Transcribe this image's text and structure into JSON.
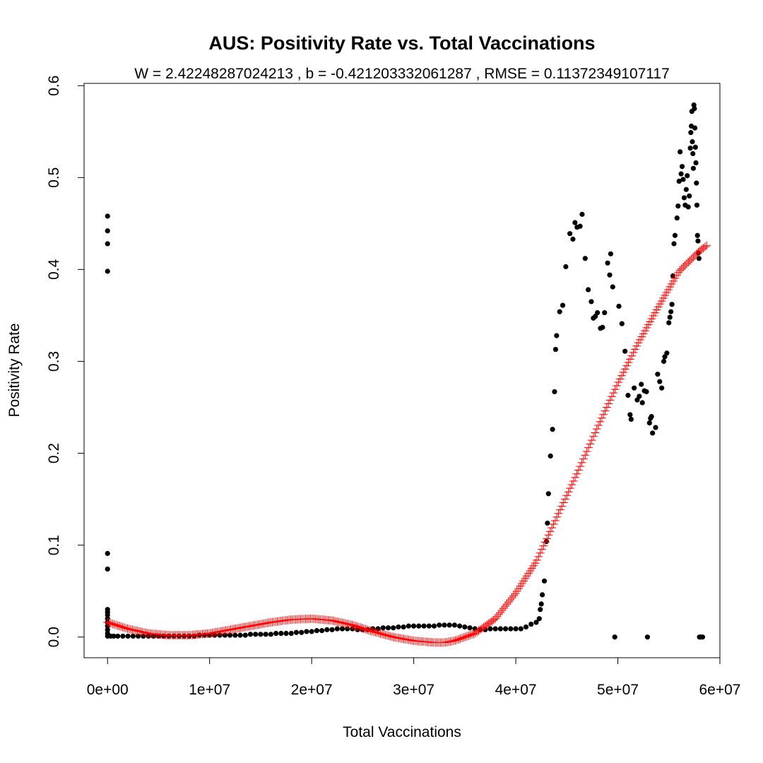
{
  "chart_data": {
    "type": "scatter",
    "title": "AUS: Positivity Rate vs. Total Vaccinations",
    "subtitle": "W = 2.42248287024213 , b = -0.421203332061287 , RMSE = 0.11372349107117",
    "xlabel": "Total Vaccinations",
    "ylabel": "Positivity Rate",
    "xlim": [
      -2300000,
      60000000
    ],
    "ylim": [
      -0.0225,
      0.6025
    ],
    "x_ticks": [
      0,
      10000000,
      20000000,
      30000000,
      40000000,
      50000000,
      60000000
    ],
    "x_tick_labels": [
      "0e+00",
      "1e+07",
      "2e+07",
      "3e+07",
      "4e+07",
      "5e+07",
      "6e+07"
    ],
    "y_ticks": [
      0,
      0.1,
      0.2,
      0.3,
      0.4,
      0.5,
      0.6
    ],
    "y_tick_labels": [
      "0.0",
      "0.1",
      "0.2",
      "0.3",
      "0.4",
      "0.5",
      "0.6"
    ],
    "grid": false,
    "series": [
      {
        "marker": "filled-circle",
        "color": "#000000",
        "points": [
          [
            0,
            0.458
          ],
          [
            0,
            0.442
          ],
          [
            0,
            0.428
          ],
          [
            0,
            0.398
          ],
          [
            0,
            0.091
          ],
          [
            0,
            0.074
          ],
          [
            0,
            0.03
          ],
          [
            0,
            0.027
          ],
          [
            0,
            0.024
          ],
          [
            0,
            0.02
          ],
          [
            0,
            0.016
          ],
          [
            0,
            0.012
          ],
          [
            0,
            0.008
          ],
          [
            0,
            0.004
          ],
          [
            0,
            0.001
          ],
          [
            300000,
            0.001
          ],
          [
            600000,
            0.001
          ],
          [
            1000000,
            0.001
          ],
          [
            1500000,
            0.001
          ],
          [
            2000000,
            0.001
          ],
          [
            2500000,
            0.001
          ],
          [
            3000000,
            0.001
          ],
          [
            3500000,
            0.001
          ],
          [
            4000000,
            0.001
          ],
          [
            4500000,
            0.001
          ],
          [
            5000000,
            0.001
          ],
          [
            5500000,
            0.001
          ],
          [
            6000000,
            0.001
          ],
          [
            6500000,
            0.001
          ],
          [
            7000000,
            0.001
          ],
          [
            7500000,
            0.001
          ],
          [
            8000000,
            0.001
          ],
          [
            8500000,
            0.001
          ],
          [
            9000000,
            0.002
          ],
          [
            9500000,
            0.002
          ],
          [
            10000000,
            0.002
          ],
          [
            10500000,
            0.002
          ],
          [
            11000000,
            0.002
          ],
          [
            11500000,
            0.002
          ],
          [
            12000000,
            0.002
          ],
          [
            12500000,
            0.002
          ],
          [
            13000000,
            0.002
          ],
          [
            13500000,
            0.002
          ],
          [
            14000000,
            0.003
          ],
          [
            14500000,
            0.003
          ],
          [
            15000000,
            0.003
          ],
          [
            15500000,
            0.003
          ],
          [
            16000000,
            0.003
          ],
          [
            16500000,
            0.004
          ],
          [
            17000000,
            0.004
          ],
          [
            17500000,
            0.004
          ],
          [
            18000000,
            0.004
          ],
          [
            18500000,
            0.005
          ],
          [
            19000000,
            0.005
          ],
          [
            19500000,
            0.006
          ],
          [
            20000000,
            0.006
          ],
          [
            20500000,
            0.007
          ],
          [
            21000000,
            0.007
          ],
          [
            21500000,
            0.008
          ],
          [
            22000000,
            0.008
          ],
          [
            22500000,
            0.009
          ],
          [
            23000000,
            0.009
          ],
          [
            23500000,
            0.009
          ],
          [
            24000000,
            0.009
          ],
          [
            24500000,
            0.008
          ],
          [
            25000000,
            0.008
          ],
          [
            25500000,
            0.008
          ],
          [
            26000000,
            0.009
          ],
          [
            26500000,
            0.009
          ],
          [
            27000000,
            0.01
          ],
          [
            27500000,
            0.01
          ],
          [
            28000000,
            0.01
          ],
          [
            28500000,
            0.011
          ],
          [
            29000000,
            0.011
          ],
          [
            29500000,
            0.012
          ],
          [
            30000000,
            0.012
          ],
          [
            30500000,
            0.012
          ],
          [
            31000000,
            0.012
          ],
          [
            31500000,
            0.012
          ],
          [
            32000000,
            0.012
          ],
          [
            32500000,
            0.013
          ],
          [
            33000000,
            0.013
          ],
          [
            33500000,
            0.013
          ],
          [
            34000000,
            0.013
          ],
          [
            34500000,
            0.012
          ],
          [
            35000000,
            0.011
          ],
          [
            35500000,
            0.01
          ],
          [
            36000000,
            0.009
          ],
          [
            36500000,
            0.008
          ],
          [
            37000000,
            0.008
          ],
          [
            37500000,
            0.009
          ],
          [
            38000000,
            0.009
          ],
          [
            38500000,
            0.009
          ],
          [
            39000000,
            0.009
          ],
          [
            39500000,
            0.009
          ],
          [
            40000000,
            0.009
          ],
          [
            40500000,
            0.009
          ],
          [
            41000000,
            0.011
          ],
          [
            41500000,
            0.014
          ],
          [
            42000000,
            0.016
          ],
          [
            42300000,
            0.02
          ],
          [
            42400000,
            0.03
          ],
          [
            42500000,
            0.036
          ],
          [
            42600000,
            0.046
          ],
          [
            42800000,
            0.061
          ],
          [
            43000000,
            0.104
          ],
          [
            43100000,
            0.124
          ],
          [
            43200000,
            0.156
          ],
          [
            43400000,
            0.197
          ],
          [
            43600000,
            0.226
          ],
          [
            43800000,
            0.267
          ],
          [
            43900000,
            0.313
          ],
          [
            44000000,
            0.328
          ],
          [
            44300000,
            0.354
          ],
          [
            44600000,
            0.361
          ],
          [
            44900000,
            0.403
          ],
          [
            45300000,
            0.439
          ],
          [
            45600000,
            0.433
          ],
          [
            45800000,
            0.451
          ],
          [
            46000000,
            0.446
          ],
          [
            46300000,
            0.447
          ],
          [
            46500000,
            0.46
          ],
          [
            46800000,
            0.412
          ],
          [
            47100000,
            0.378
          ],
          [
            47400000,
            0.365
          ],
          [
            47600000,
            0.347
          ],
          [
            47800000,
            0.349
          ],
          [
            48000000,
            0.353
          ],
          [
            48300000,
            0.336
          ],
          [
            48500000,
            0.337
          ],
          [
            48700000,
            0.353
          ],
          [
            49000000,
            0.407
          ],
          [
            49200000,
            0.394
          ],
          [
            49300000,
            0.417
          ],
          [
            49500000,
            0.381
          ],
          [
            49700000,
            0.0
          ],
          [
            50100000,
            0.36
          ],
          [
            50400000,
            0.341
          ],
          [
            50700000,
            0.311
          ],
          [
            51000000,
            0.263
          ],
          [
            51200000,
            0.242
          ],
          [
            51300000,
            0.237
          ],
          [
            51600000,
            0.271
          ],
          [
            51900000,
            0.258
          ],
          [
            52100000,
            0.262
          ],
          [
            52300000,
            0.275
          ],
          [
            52400000,
            0.255
          ],
          [
            52600000,
            0.268
          ],
          [
            52800000,
            0.267
          ],
          [
            52900000,
            0.0
          ],
          [
            53100000,
            0.233
          ],
          [
            53200000,
            0.238
          ],
          [
            53300000,
            0.24
          ],
          [
            53400000,
            0.222
          ],
          [
            53700000,
            0.228
          ],
          [
            53900000,
            0.286
          ],
          [
            54100000,
            0.278
          ],
          [
            54300000,
            0.271
          ],
          [
            54500000,
            0.3
          ],
          [
            54600000,
            0.305
          ],
          [
            54800000,
            0.309
          ],
          [
            55000000,
            0.342
          ],
          [
            55100000,
            0.348
          ],
          [
            55200000,
            0.354
          ],
          [
            55300000,
            0.362
          ],
          [
            55400000,
            0.393
          ],
          [
            55500000,
            0.428
          ],
          [
            55600000,
            0.437
          ],
          [
            55800000,
            0.456
          ],
          [
            55900000,
            0.469
          ],
          [
            56000000,
            0.496
          ],
          [
            56100000,
            0.528
          ],
          [
            56200000,
            0.504
          ],
          [
            56300000,
            0.512
          ],
          [
            56400000,
            0.498
          ],
          [
            56500000,
            0.478
          ],
          [
            56600000,
            0.47
          ],
          [
            56700000,
            0.487
          ],
          [
            56800000,
            0.502
          ],
          [
            56900000,
            0.468
          ],
          [
            57000000,
            0.48
          ],
          [
            57100000,
            0.532
          ],
          [
            57150000,
            0.549
          ],
          [
            57200000,
            0.556
          ],
          [
            57250000,
            0.572
          ],
          [
            57300000,
            0.539
          ],
          [
            57350000,
            0.526
          ],
          [
            57400000,
            0.51
          ],
          [
            57450000,
            0.579
          ],
          [
            57500000,
            0.575
          ],
          [
            57550000,
            0.554
          ],
          [
            57600000,
            0.533
          ],
          [
            57650000,
            0.516
          ],
          [
            57700000,
            0.494
          ],
          [
            57750000,
            0.47
          ],
          [
            57800000,
            0.437
          ],
          [
            57850000,
            0.431
          ],
          [
            57900000,
            0.418
          ],
          [
            57950000,
            0.412
          ],
          [
            58000000,
            0.0
          ],
          [
            58100000,
            0.0
          ],
          [
            58300000,
            0.0
          ]
        ]
      },
      {
        "marker": "plus",
        "color": "#ff0000",
        "fit": "polynomial",
        "knots": [
          [
            0,
            0.016
          ],
          [
            2000000,
            0.009
          ],
          [
            4000000,
            0.004
          ],
          [
            6000000,
            0.002
          ],
          [
            8000000,
            0.002
          ],
          [
            10000000,
            0.004
          ],
          [
            12000000,
            0.008
          ],
          [
            14000000,
            0.012
          ],
          [
            16000000,
            0.016
          ],
          [
            18000000,
            0.019
          ],
          [
            20000000,
            0.02
          ],
          [
            22000000,
            0.018
          ],
          [
            24000000,
            0.013
          ],
          [
            26000000,
            0.006
          ],
          [
            28000000,
            0.0
          ],
          [
            30000000,
            -0.004
          ],
          [
            32000000,
            -0.006
          ],
          [
            33000000,
            -0.006
          ],
          [
            34000000,
            -0.004
          ],
          [
            36000000,
            0.004
          ],
          [
            38000000,
            0.02
          ],
          [
            40000000,
            0.048
          ],
          [
            42000000,
            0.082
          ],
          [
            44000000,
            0.13
          ],
          [
            46000000,
            0.178
          ],
          [
            48000000,
            0.228
          ],
          [
            50000000,
            0.276
          ],
          [
            52000000,
            0.32
          ],
          [
            54000000,
            0.36
          ],
          [
            56000000,
            0.398
          ],
          [
            58000000,
            0.42
          ],
          [
            58700000,
            0.426
          ]
        ]
      }
    ]
  }
}
